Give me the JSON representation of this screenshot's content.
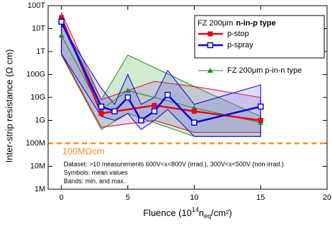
{
  "chart_data": {
    "type": "line",
    "y_label": "Inter-strip resistance (Ω cm)",
    "x_label": {
      "start": "Fluence (10",
      "sup": "14",
      "mid": "n",
      "sub": "eq",
      "end": "/cm²)"
    },
    "xlim": [
      -1,
      20
    ],
    "xticks": [
      0,
      5,
      10,
      15,
      20
    ],
    "ylim": [
      1000000,
      100000000000000
    ],
    "log_y": true,
    "yticks": [
      {
        "value": 1000000,
        "label": "1M"
      },
      {
        "value": 10000000,
        "label": "10M"
      },
      {
        "value": 100000000,
        "label": "100M"
      },
      {
        "value": 1000000000,
        "label": "1G"
      },
      {
        "value": 10000000000,
        "label": "10G"
      },
      {
        "value": 100000000000,
        "label": "100G"
      },
      {
        "value": 1000000000000,
        "label": "1T"
      },
      {
        "value": 10000000000000,
        "label": "10T"
      },
      {
        "value": 100000000000000,
        "label": "100T"
      }
    ],
    "legend_title": {
      "plain": "FZ 200μm",
      "bold": "n-in-p type"
    },
    "reference_line": {
      "value": 100000000,
      "color": "#ff8c1a",
      "label": "100MΩcm"
    },
    "notes": [
      "Dataset: >10 measurements 600V<x<800V (irrad.), 300V<x<500V (non-irrad.)",
      "Symbols: mean values",
      "Bands: min. and max."
    ],
    "series": [
      {
        "name": "FZ 200μm p-in-n type",
        "color": "#1a8a1a",
        "marker": "triangle",
        "band_fill": "#2ca02c",
        "x": [
          0,
          3,
          5,
          10,
          15
        ],
        "values": [
          5000000000000,
          3000000000,
          20000000000,
          3500000000,
          800000000
        ],
        "max": [
          20000000000000,
          8000000000,
          700000000000,
          30000000000,
          1500000000
        ],
        "min": [
          700000000000,
          400000000,
          2000000000,
          200000000,
          200000000
        ]
      },
      {
        "name": "p-stop",
        "color": "#e8001c",
        "marker": "square",
        "band_fill": "#9955cc",
        "x": [
          0,
          3,
          7,
          10,
          15
        ],
        "values": [
          30000000000000,
          2000000000,
          4500000000,
          2500000000,
          1000000000
        ],
        "max": [
          50000000000000,
          8000000000,
          50000000000,
          30000000000,
          10000000000
        ],
        "min": [
          800000000000,
          500000000,
          1000000000,
          300000000,
          300000000
        ]
      },
      {
        "name": "p-spray",
        "color": "#0000e0",
        "marker": "open-square",
        "band_fill": "#6666dd",
        "x": [
          0,
          3,
          4,
          5,
          6,
          7,
          8,
          10,
          15
        ],
        "values": [
          20000000000000,
          4000000000,
          2500000000,
          10000000000,
          1000000000,
          2500000000,
          13000000000,
          800000000,
          4000000000
        ],
        "max": [
          15000000000000,
          25000000000,
          5000000000,
          100000000000,
          5000000000,
          10000000000,
          150000000000,
          5000000000,
          35000000000
        ],
        "min": [
          800000000000,
          1500000000,
          1000000000,
          2000000000,
          400000000,
          1000000000,
          3000000000,
          200000000,
          200000000
        ]
      }
    ]
  }
}
